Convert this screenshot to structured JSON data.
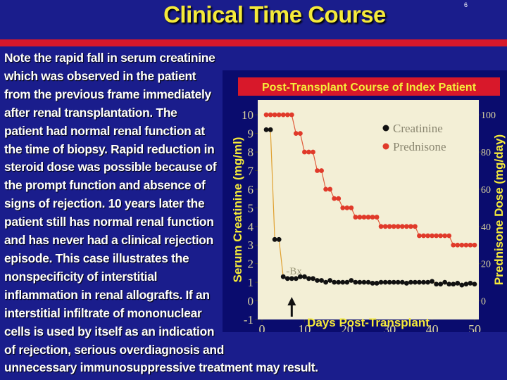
{
  "slide": {
    "title": "Clinical Time Course",
    "page_number": "6",
    "body_lines": [
      "Note the rapid fall in serum creatinine",
      "which was observed in the patient",
      "from the previous frame immediately",
      "after renal transplantation. The",
      "patient had normal renal function at",
      "the time of biopsy. Rapid reduction in",
      "steroid dose was possible because of",
      "the prompt function and absence of",
      "signs of rejection. 10 years later the",
      "patient still has normal renal function",
      "and has never had a clinical rejection",
      "episode. This case illustrates the",
      "nonspecificity of interstitial",
      "inflammation in renal allografts.  If an",
      "interstitial infiltrate of mononuclear",
      "cells is used by itself as an indication",
      "of rejection, serious overdiagnosis and",
      "unnecessary immunosuppressive treatment may result."
    ],
    "colors": {
      "background": "#1a1d8c",
      "title": "#f5ea3a",
      "rule": "#d8182a",
      "plot_background": "#f3efd6",
      "creatinine": "#111111",
      "prednisone": "#e03a2a",
      "axis_label": "#f5ea3a"
    }
  },
  "chart_data": {
    "type": "line",
    "title": "Post-Transplant Course of Index Patient",
    "xlabel": "Days Post-Transplant",
    "ylabel": "Serum Creatinine (mg/ml)",
    "y2label": "Prednisone Dose (mg/day)",
    "xlim": [
      -1,
      51
    ],
    "ylim": [
      -1,
      10.8
    ],
    "y2lim": [
      -10,
      108
    ],
    "x_ticks": [
      "0",
      "10",
      "20",
      "30",
      "40",
      "50"
    ],
    "y_ticks": [
      "-1",
      "0",
      "1",
      "2",
      "3",
      "4",
      "5",
      "6",
      "7",
      "8",
      "9",
      "10"
    ],
    "y2_ticks": [
      "0",
      "20",
      "40",
      "60",
      "80",
      "100"
    ],
    "legend_position": "top-right",
    "annotation": {
      "text": "Bx",
      "x": 7
    },
    "series": [
      {
        "name": "Creatinine",
        "axis": "left",
        "color": "#111111",
        "x": [
          1,
          2,
          3,
          4,
          5,
          6,
          7,
          8,
          9,
          10,
          11,
          12,
          13,
          14,
          15,
          16,
          17,
          18,
          19,
          20,
          21,
          22,
          23,
          24,
          25,
          26,
          27,
          28,
          29,
          30,
          31,
          32,
          33,
          34,
          35,
          36,
          37,
          38,
          39,
          40,
          41,
          42,
          43,
          44,
          45,
          46,
          47,
          48,
          49,
          50
        ],
        "values": [
          9.2,
          9.2,
          3.3,
          3.3,
          1.3,
          1.2,
          1.2,
          1.2,
          1.3,
          1.3,
          1.2,
          1.2,
          1.1,
          1.1,
          1.0,
          1.1,
          1.0,
          1.0,
          1.0,
          1.0,
          1.1,
          1.0,
          1.0,
          1.0,
          1.0,
          0.95,
          0.95,
          1.0,
          1.0,
          1.0,
          1.0,
          1.0,
          1.0,
          0.95,
          1.0,
          1.0,
          1.0,
          1.0,
          1.0,
          1.05,
          0.9,
          0.9,
          1.0,
          0.9,
          0.9,
          0.95,
          0.85,
          0.9,
          0.95,
          0.9
        ]
      },
      {
        "name": "Prednisone",
        "axis": "right",
        "color": "#e03a2a",
        "x": [
          1,
          2,
          3,
          4,
          5,
          6,
          7,
          8,
          9,
          10,
          11,
          12,
          13,
          14,
          15,
          16,
          17,
          18,
          19,
          20,
          21,
          22,
          23,
          24,
          25,
          26,
          27,
          28,
          29,
          30,
          31,
          32,
          33,
          34,
          35,
          36,
          37,
          38,
          39,
          40,
          41,
          42,
          43,
          44,
          45,
          46,
          47,
          48,
          49,
          50
        ],
        "values": [
          100,
          100,
          100,
          100,
          100,
          100,
          100,
          90,
          90,
          80,
          80,
          80,
          70,
          70,
          60,
          60,
          55,
          55,
          50,
          50,
          50,
          45,
          45,
          45,
          45,
          45,
          45,
          40,
          40,
          40,
          40,
          40,
          40,
          40,
          40,
          40,
          35,
          35,
          35,
          35,
          35,
          35,
          35,
          35,
          30,
          30,
          30,
          30,
          30,
          30
        ]
      }
    ]
  }
}
